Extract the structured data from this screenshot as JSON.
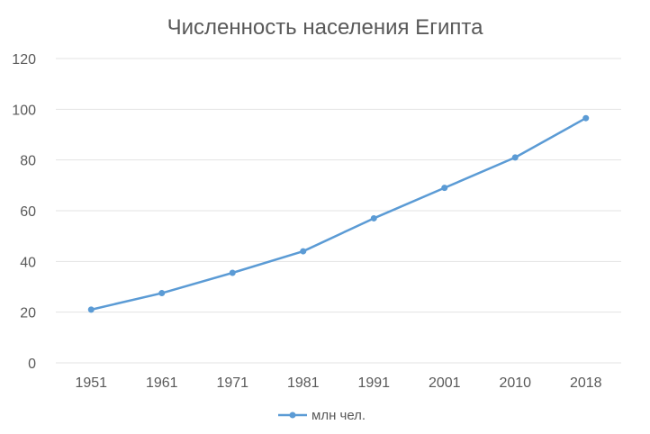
{
  "chart_data": {
    "type": "line",
    "title": "Численность населения Египта",
    "categories": [
      "1951",
      "1961",
      "1971",
      "1981",
      "1991",
      "2001",
      "2010",
      "2018"
    ],
    "series": [
      {
        "name": "млн чел.",
        "values": [
          21,
          27.5,
          35.5,
          44,
          57,
          69,
          81,
          96.5
        ]
      }
    ],
    "ylim": [
      0,
      120
    ],
    "yticks": [
      "0",
      "20",
      "40",
      "60",
      "80",
      "100",
      "120"
    ],
    "grid": true,
    "legend": "bottom",
    "colors": {
      "line": "#5b9bd5",
      "grid": "#e3e3e3",
      "text": "#595959"
    }
  }
}
